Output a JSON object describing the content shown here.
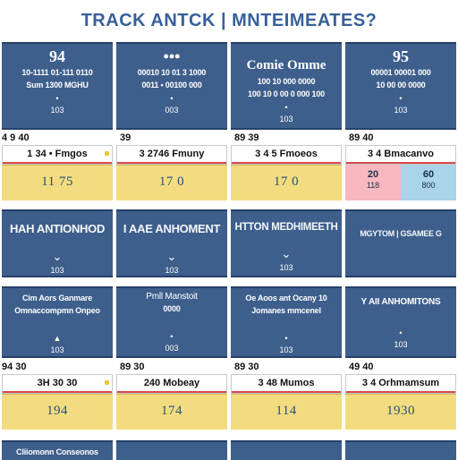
{
  "header": {
    "title": "TRACK ANTCK | MNTEIMEATES?"
  },
  "row1": [
    {
      "big": "94",
      "sub1": "10-1111 01-111 0110",
      "sub2": "Sum 1300 MGHU",
      "icon_row": "•",
      "num": "103",
      "pre": "4 9  40",
      "mid": "1 34 • Fmgos",
      "val": "11 75"
    },
    {
      "big": "•••",
      "sub1": "00010 10 01 3 1000",
      "sub2": "0011 • 00100 000",
      "icon_row": "•",
      "num": "003",
      "pre": "39",
      "mid": "3 2746  Fmuny",
      "val": "17 0"
    },
    {
      "big": "Comie  Omme",
      "sub1": "100 10 000 0000",
      "sub2": "100 10 0 00 0 000 100",
      "icon_row": "•",
      "num": "103",
      "pre": "89   39",
      "mid": "3 4 5  Fmoeos",
      "val": "17 0"
    },
    {
      "big": "95",
      "sub1": "00001 00001 000",
      "sub2": "10 00 00 0000",
      "icon_row": "•",
      "num": "103",
      "pre": "89   40",
      "mid": "3 4  Bmacanvo",
      "split_l": "20",
      "split_l2": "118",
      "split_r": "60",
      "split_r2": "800"
    }
  ],
  "row2": [
    {
      "label": "HAH ANTIONHOD",
      "chev": "⌄",
      "num": "103"
    },
    {
      "label": "I AAE ANHOMENT",
      "chev": "⌄",
      "num": "103"
    },
    {
      "label": "HTTON MEDHIMEETH",
      "chev": "⌄",
      "num": "103"
    },
    {
      "label": "MGYTOM  |  GSAMEE  G",
      "chev": "",
      "num": ""
    }
  ],
  "row3": [
    {
      "big": "Cim Aors Ganmare",
      "sub1": "Omnaccompmn Onpeo",
      "sub2": "",
      "icon_row": "▲",
      "num": "103",
      "pre": "94   30",
      "mid": "3H 30 30",
      "val": "194"
    },
    {
      "big": "Pmll Manstoit",
      "sub1": "0000  ",
      "sub2": "",
      "icon_row": "•",
      "num": "003",
      "pre": "89   30",
      "mid": "240 Mobeay",
      "val": "174"
    },
    {
      "big": "  Oe Aoos ant Ocany 10",
      "sub1": "Jomanes mmcenel",
      "sub2": "",
      "icon_row": "•",
      "num": "103",
      "pre": "89   30",
      "mid": "3 48  Mumos",
      "val": "114"
    },
    {
      "big": "Y AII ANHOMITONS",
      "sub1": "",
      "sub2": "",
      "icon_row": "•",
      "num": "103",
      "pre": "49   40",
      "mid": "3 4  Orhmamsum",
      "val": "1930"
    }
  ],
  "footer": {
    "partial": "Cliiomonn Conseonos"
  },
  "colors": {
    "card_blue": "#3e5f8c",
    "title_blue": "#37609a",
    "yellow": "#f3dc80",
    "pink": "#f7b8c0",
    "lightblue": "#a9d4ea"
  }
}
